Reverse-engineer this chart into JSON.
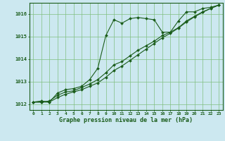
{
  "bg_color": "#cce8f0",
  "grid_color": "#80bf80",
  "line_color": "#1a5c1a",
  "title": "Graphe pression niveau de la mer (hPa)",
  "hours": [
    0,
    1,
    2,
    3,
    4,
    5,
    6,
    7,
    8,
    9,
    10,
    11,
    12,
    13,
    14,
    15,
    16,
    17,
    18,
    19,
    20,
    21,
    22,
    23
  ],
  "ylim": [
    1011.75,
    1016.5
  ],
  "yticks": [
    1012,
    1013,
    1014,
    1015,
    1016
  ],
  "line1": [
    1012.1,
    1012.15,
    1012.1,
    1012.5,
    1012.65,
    1012.7,
    1012.8,
    1013.1,
    1013.6,
    1015.05,
    1015.75,
    1015.6,
    1015.8,
    1015.85,
    1015.8,
    1015.75,
    1015.2,
    1015.2,
    1015.7,
    1016.1,
    1016.1,
    1016.25,
    1016.3,
    1016.4
  ],
  "line2": [
    1012.1,
    1012.1,
    1012.15,
    1012.4,
    1012.55,
    1012.6,
    1012.75,
    1012.9,
    1013.1,
    1013.4,
    1013.75,
    1013.9,
    1014.15,
    1014.4,
    1014.6,
    1014.8,
    1015.05,
    1015.2,
    1015.4,
    1015.7,
    1015.9,
    1016.1,
    1016.25,
    1016.4
  ],
  "line3": [
    1012.1,
    1012.1,
    1012.1,
    1012.3,
    1012.45,
    1012.55,
    1012.65,
    1012.8,
    1012.95,
    1013.2,
    1013.5,
    1013.7,
    1013.95,
    1014.2,
    1014.45,
    1014.7,
    1014.95,
    1015.15,
    1015.38,
    1015.65,
    1015.88,
    1016.08,
    1016.25,
    1016.4
  ]
}
